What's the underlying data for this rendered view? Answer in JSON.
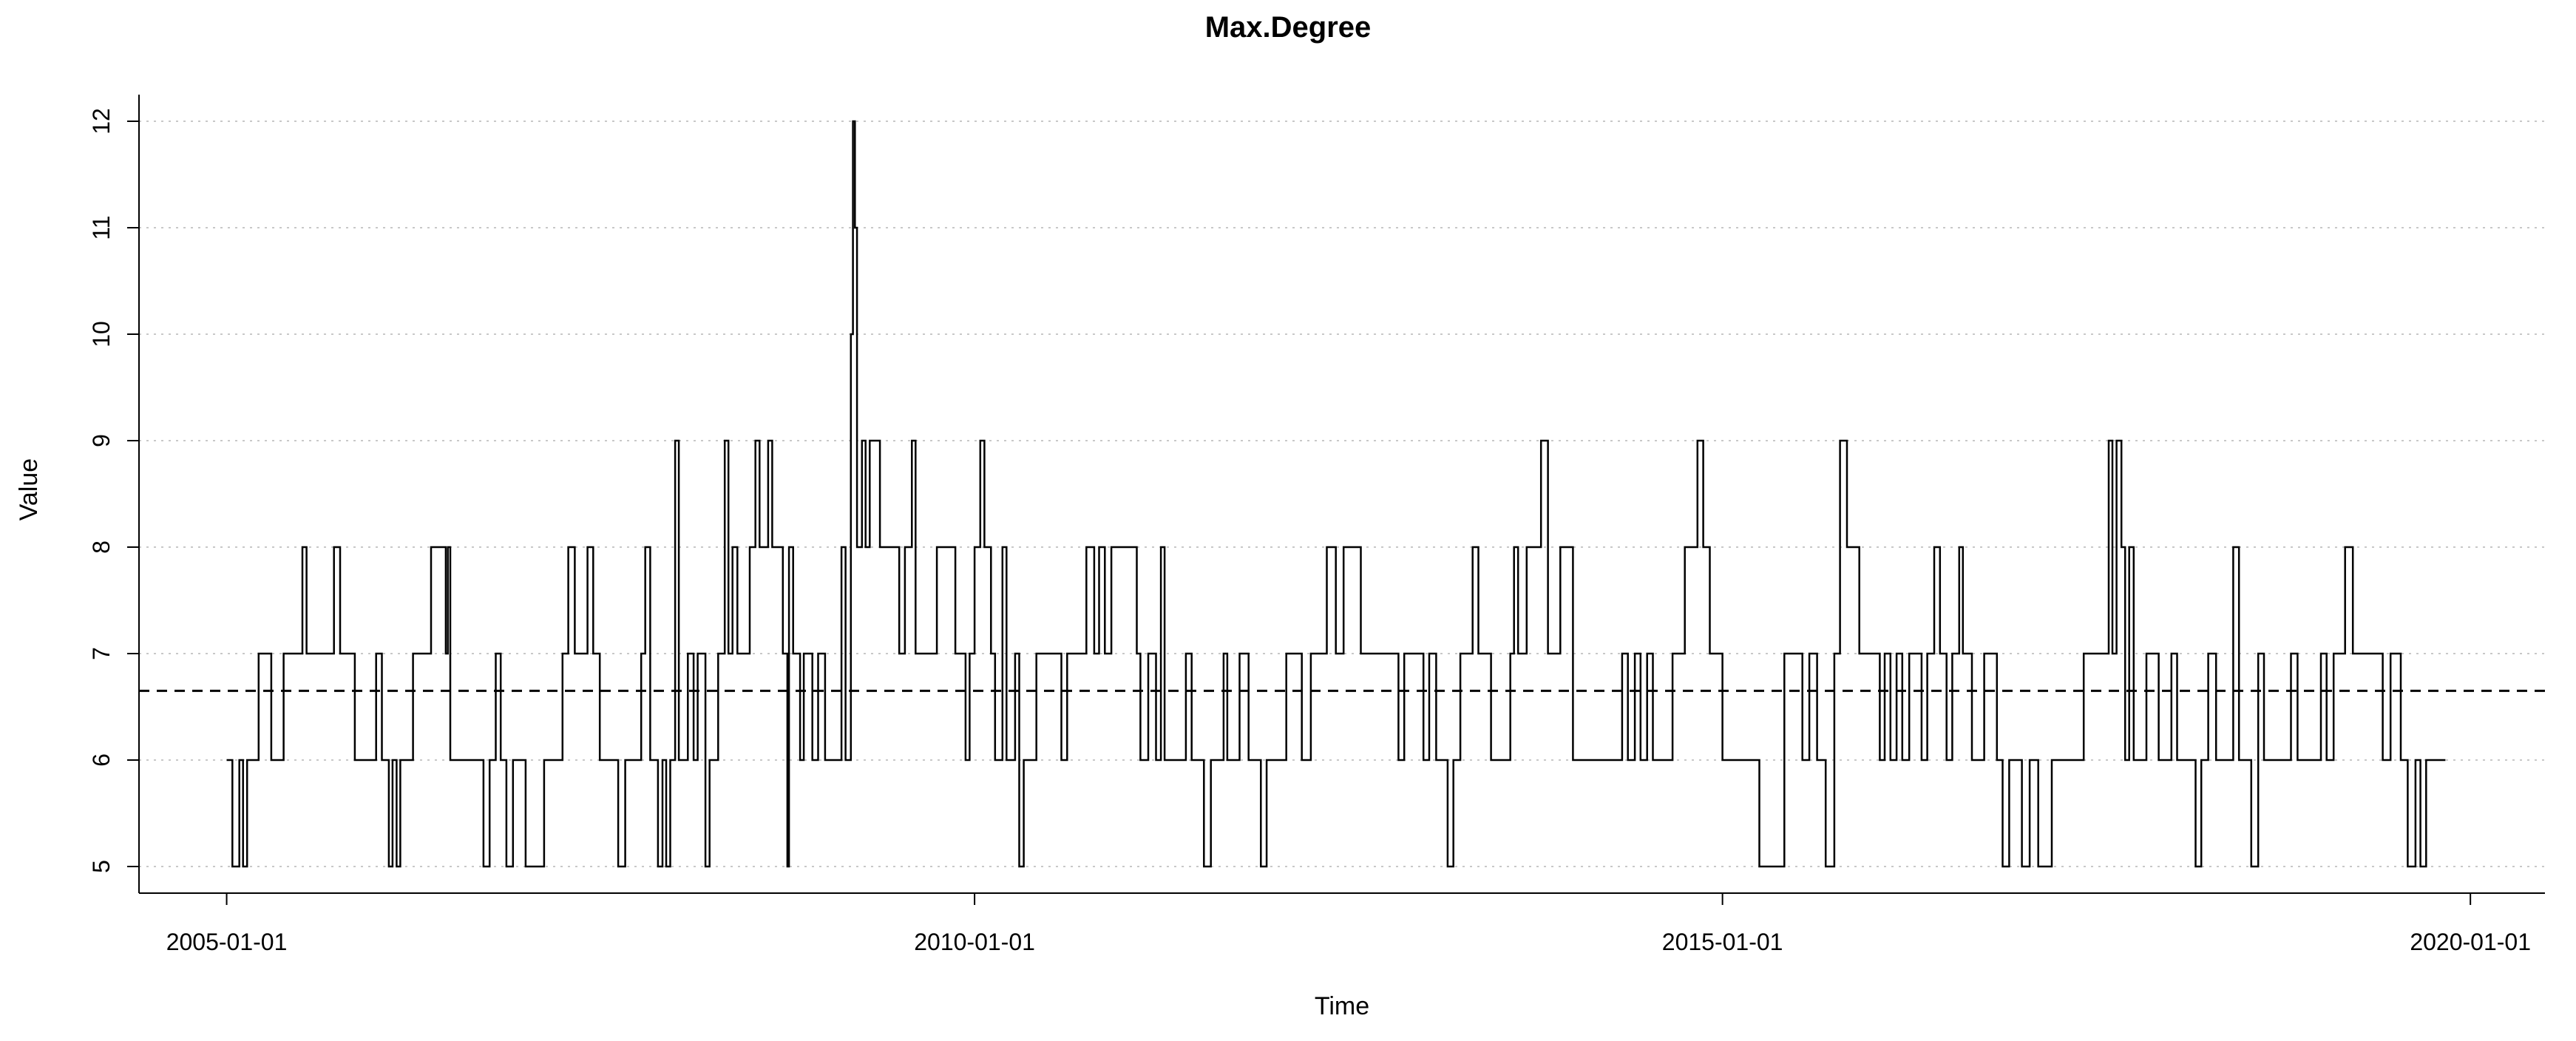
{
  "chart_data": {
    "type": "line",
    "title": "Max.Degree",
    "xlabel": "Time",
    "ylabel": "Value",
    "ylim": [
      4.75,
      12.25
    ],
    "xlim": [
      "2004-06-01",
      "2020-07-01"
    ],
    "x_ticks": [
      "2005-01-01",
      "2010-01-01",
      "2015-01-01",
      "2020-01-01"
    ],
    "y_ticks": [
      5,
      6,
      7,
      8,
      9,
      10,
      11,
      12
    ],
    "grid": "horizontal dotted",
    "mean_line": 6.65,
    "series": [
      {
        "line_style": "step",
        "points": [
          [
            "2005-01-01",
            6
          ],
          [
            "2005-01-15",
            5
          ],
          [
            "2005-02-01",
            6
          ],
          [
            "2005-02-10",
            5
          ],
          [
            "2005-02-20",
            6
          ],
          [
            "2005-03-10",
            6
          ],
          [
            "2005-03-20",
            7
          ],
          [
            "2005-04-10",
            7
          ],
          [
            "2005-04-20",
            6
          ],
          [
            "2005-05-10",
            6
          ],
          [
            "2005-05-20",
            7
          ],
          [
            "2005-06-20",
            7
          ],
          [
            "2005-07-05",
            8
          ],
          [
            "2005-07-15",
            7
          ],
          [
            "2005-09-10",
            7
          ],
          [
            "2005-09-20",
            8
          ],
          [
            "2005-10-05",
            7
          ],
          [
            "2005-10-25",
            7
          ],
          [
            "2005-11-10",
            6
          ],
          [
            "2005-12-20",
            6
          ],
          [
            "2006-01-01",
            7
          ],
          [
            "2006-01-15",
            6
          ],
          [
            "2006-02-01",
            5
          ],
          [
            "2006-02-10",
            6
          ],
          [
            "2006-02-20",
            5
          ],
          [
            "2006-03-01",
            6
          ],
          [
            "2006-03-20",
            6
          ],
          [
            "2006-04-01",
            7
          ],
          [
            "2006-05-01",
            7
          ],
          [
            "2006-05-15",
            8
          ],
          [
            "2006-06-15",
            8
          ],
          [
            "2006-06-20",
            7
          ],
          [
            "2006-06-25",
            8
          ],
          [
            "2006-07-01",
            6
          ],
          [
            "2006-08-01",
            6
          ],
          [
            "2006-09-10",
            6
          ],
          [
            "2006-09-20",
            5
          ],
          [
            "2006-10-05",
            6
          ],
          [
            "2006-10-20",
            7
          ],
          [
            "2006-11-01",
            6
          ],
          [
            "2006-11-15",
            5
          ],
          [
            "2006-12-01",
            6
          ],
          [
            "2007-01-01",
            5
          ],
          [
            "2007-02-15",
            6
          ],
          [
            "2007-03-10",
            6
          ],
          [
            "2007-04-01",
            7
          ],
          [
            "2007-04-15",
            8
          ],
          [
            "2007-05-01",
            7
          ],
          [
            "2007-06-01",
            8
          ],
          [
            "2007-06-15",
            7
          ],
          [
            "2007-07-01",
            6
          ],
          [
            "2007-08-01",
            6
          ],
          [
            "2007-08-15",
            5
          ],
          [
            "2007-09-01",
            6
          ],
          [
            "2007-10-01",
            6
          ],
          [
            "2007-10-10",
            7
          ],
          [
            "2007-10-20",
            8
          ],
          [
            "2007-11-01",
            6
          ],
          [
            "2007-11-20",
            5
          ],
          [
            "2007-12-01",
            6
          ],
          [
            "2007-12-10",
            5
          ],
          [
            "2007-12-20",
            6
          ],
          [
            "2008-01-01",
            9
          ],
          [
            "2008-01-10",
            6
          ],
          [
            "2008-02-01",
            7
          ],
          [
            "2008-02-15",
            6
          ],
          [
            "2008-02-25",
            7
          ],
          [
            "2008-03-15",
            5
          ],
          [
            "2008-03-25",
            6
          ],
          [
            "2008-04-15",
            7
          ],
          [
            "2008-05-01",
            9
          ],
          [
            "2008-05-10",
            7
          ],
          [
            "2008-05-20",
            8
          ],
          [
            "2008-06-01",
            7
          ],
          [
            "2008-07-01",
            8
          ],
          [
            "2008-07-15",
            9
          ],
          [
            "2008-07-25",
            8
          ],
          [
            "2008-08-15",
            9
          ],
          [
            "2008-08-25",
            8
          ],
          [
            "2008-09-10",
            8
          ],
          [
            "2008-09-20",
            7
          ],
          [
            "2008-10-01",
            5
          ],
          [
            "2008-10-05",
            8
          ],
          [
            "2008-10-15",
            7
          ],
          [
            "2008-11-01",
            6
          ],
          [
            "2008-11-10",
            7
          ],
          [
            "2008-12-01",
            6
          ],
          [
            "2008-12-15",
            7
          ],
          [
            "2009-01-01",
            6
          ],
          [
            "2009-02-01",
            6
          ],
          [
            "2009-02-10",
            8
          ],
          [
            "2009-02-20",
            6
          ],
          [
            "2009-03-05",
            10
          ],
          [
            "2009-03-10",
            12
          ],
          [
            "2009-03-15",
            11
          ],
          [
            "2009-03-20",
            8
          ],
          [
            "2009-04-01",
            9
          ],
          [
            "2009-04-10",
            8
          ],
          [
            "2009-04-20",
            9
          ],
          [
            "2009-05-01",
            9
          ],
          [
            "2009-05-15",
            8
          ],
          [
            "2009-06-15",
            8
          ],
          [
            "2009-07-01",
            7
          ],
          [
            "2009-07-15",
            8
          ],
          [
            "2009-08-01",
            9
          ],
          [
            "2009-08-10",
            7
          ],
          [
            "2009-09-01",
            7
          ],
          [
            "2009-10-01",
            8
          ],
          [
            "2009-11-01",
            8
          ],
          [
            "2009-11-15",
            7
          ],
          [
            "2009-12-10",
            6
          ],
          [
            "2009-12-20",
            7
          ],
          [
            "2010-01-01",
            8
          ],
          [
            "2010-01-15",
            9
          ],
          [
            "2010-01-25",
            8
          ],
          [
            "2010-02-10",
            7
          ],
          [
            "2010-02-20",
            6
          ],
          [
            "2010-03-10",
            8
          ],
          [
            "2010-03-20",
            6
          ],
          [
            "2010-04-10",
            7
          ],
          [
            "2010-04-20",
            5
          ],
          [
            "2010-05-01",
            6
          ],
          [
            "2010-06-01",
            7
          ],
          [
            "2010-07-01",
            7
          ],
          [
            "2010-08-01",
            6
          ],
          [
            "2010-08-15",
            7
          ],
          [
            "2010-09-01",
            7
          ],
          [
            "2010-10-01",
            8
          ],
          [
            "2010-10-20",
            7
          ],
          [
            "2010-11-01",
            8
          ],
          [
            "2010-11-15",
            7
          ],
          [
            "2010-12-01",
            8
          ],
          [
            "2011-01-01",
            8
          ],
          [
            "2011-02-01",
            7
          ],
          [
            "2011-02-10",
            6
          ],
          [
            "2011-03-01",
            7
          ],
          [
            "2011-03-20",
            6
          ],
          [
            "2011-04-01",
            8
          ],
          [
            "2011-04-10",
            6
          ],
          [
            "2011-05-15",
            6
          ],
          [
            "2011-06-01",
            7
          ],
          [
            "2011-06-15",
            6
          ],
          [
            "2011-07-15",
            5
          ],
          [
            "2011-08-01",
            6
          ],
          [
            "2011-09-01",
            7
          ],
          [
            "2011-09-10",
            6
          ],
          [
            "2011-10-01",
            6
          ],
          [
            "2011-10-10",
            7
          ],
          [
            "2011-11-01",
            6
          ],
          [
            "2011-12-01",
            5
          ],
          [
            "2011-12-15",
            6
          ],
          [
            "2012-01-15",
            6
          ],
          [
            "2012-02-01",
            7
          ],
          [
            "2012-03-01",
            7
          ],
          [
            "2012-03-10",
            6
          ],
          [
            "2012-04-01",
            7
          ],
          [
            "2012-05-01",
            7
          ],
          [
            "2012-05-10",
            8
          ],
          [
            "2012-06-01",
            7
          ],
          [
            "2012-06-20",
            8
          ],
          [
            "2012-07-15",
            8
          ],
          [
            "2012-08-01",
            7
          ],
          [
            "2012-09-01",
            7
          ],
          [
            "2012-10-01",
            7
          ],
          [
            "2012-11-01",
            6
          ],
          [
            "2012-11-15",
            7
          ],
          [
            "2012-12-01",
            7
          ],
          [
            "2013-01-01",
            6
          ],
          [
            "2013-01-15",
            7
          ],
          [
            "2013-02-01",
            6
          ],
          [
            "2013-02-20",
            6
          ],
          [
            "2013-03-01",
            5
          ],
          [
            "2013-03-15",
            6
          ],
          [
            "2013-04-01",
            7
          ],
          [
            "2013-05-01",
            8
          ],
          [
            "2013-05-15",
            7
          ],
          [
            "2013-06-15",
            6
          ],
          [
            "2013-07-15",
            6
          ],
          [
            "2013-08-01",
            7
          ],
          [
            "2013-08-10",
            8
          ],
          [
            "2013-08-20",
            7
          ],
          [
            "2013-09-01",
            7
          ],
          [
            "2013-09-10",
            8
          ],
          [
            "2013-10-01",
            8
          ],
          [
            "2013-10-15",
            9
          ],
          [
            "2013-11-01",
            7
          ],
          [
            "2013-12-01",
            8
          ],
          [
            "2014-01-01",
            6
          ],
          [
            "2014-02-01",
            6
          ],
          [
            "2014-03-01",
            6
          ],
          [
            "2014-04-01",
            6
          ],
          [
            "2014-05-01",
            7
          ],
          [
            "2014-05-15",
            6
          ],
          [
            "2014-06-01",
            7
          ],
          [
            "2014-06-15",
            6
          ],
          [
            "2014-07-01",
            7
          ],
          [
            "2014-07-15",
            6
          ],
          [
            "2014-08-15",
            6
          ],
          [
            "2014-09-01",
            7
          ],
          [
            "2014-10-01",
            8
          ],
          [
            "2014-11-01",
            9
          ],
          [
            "2014-11-15",
            8
          ],
          [
            "2014-12-01",
            7
          ],
          [
            "2015-01-01",
            6
          ],
          [
            "2015-03-01",
            6
          ],
          [
            "2015-04-01",
            5
          ],
          [
            "2015-05-01",
            5
          ],
          [
            "2015-06-01",
            7
          ],
          [
            "2015-07-01",
            7
          ],
          [
            "2015-07-15",
            6
          ],
          [
            "2015-08-01",
            7
          ],
          [
            "2015-08-20",
            6
          ],
          [
            "2015-09-10",
            5
          ],
          [
            "2015-10-01",
            7
          ],
          [
            "2015-10-15",
            9
          ],
          [
            "2015-11-01",
            8
          ],
          [
            "2015-12-01",
            7
          ],
          [
            "2016-01-01",
            7
          ],
          [
            "2016-01-20",
            6
          ],
          [
            "2016-02-01",
            7
          ],
          [
            "2016-02-15",
            6
          ],
          [
            "2016-03-01",
            7
          ],
          [
            "2016-03-15",
            6
          ],
          [
            "2016-04-01",
            7
          ],
          [
            "2016-05-01",
            6
          ],
          [
            "2016-05-15",
            7
          ],
          [
            "2016-06-01",
            8
          ],
          [
            "2016-06-15",
            7
          ],
          [
            "2016-07-01",
            6
          ],
          [
            "2016-07-15",
            7
          ],
          [
            "2016-08-01",
            8
          ],
          [
            "2016-08-10",
            7
          ],
          [
            "2016-09-01",
            6
          ],
          [
            "2016-10-01",
            7
          ],
          [
            "2016-11-01",
            6
          ],
          [
            "2016-11-15",
            5
          ],
          [
            "2016-12-01",
            6
          ],
          [
            "2017-01-01",
            5
          ],
          [
            "2017-01-20",
            6
          ],
          [
            "2017-02-10",
            5
          ],
          [
            "2017-03-01",
            5
          ],
          [
            "2017-03-15",
            6
          ],
          [
            "2017-04-01",
            6
          ],
          [
            "2017-05-01",
            6
          ],
          [
            "2017-06-01",
            7
          ],
          [
            "2017-07-01",
            7
          ],
          [
            "2017-08-01",
            9
          ],
          [
            "2017-08-10",
            7
          ],
          [
            "2017-08-20",
            9
          ],
          [
            "2017-09-01",
            8
          ],
          [
            "2017-09-10",
            6
          ],
          [
            "2017-09-20",
            8
          ],
          [
            "2017-10-01",
            6
          ],
          [
            "2017-11-01",
            7
          ],
          [
            "2017-12-01",
            6
          ],
          [
            "2018-01-01",
            7
          ],
          [
            "2018-01-15",
            6
          ],
          [
            "2018-02-01",
            6
          ],
          [
            "2018-03-01",
            5
          ],
          [
            "2018-03-15",
            6
          ],
          [
            "2018-04-01",
            7
          ],
          [
            "2018-04-20",
            6
          ],
          [
            "2018-05-01",
            6
          ],
          [
            "2018-06-01",
            8
          ],
          [
            "2018-06-15",
            6
          ],
          [
            "2018-07-15",
            5
          ],
          [
            "2018-08-01",
            7
          ],
          [
            "2018-08-15",
            6
          ],
          [
            "2018-09-01",
            6
          ],
          [
            "2018-10-01",
            6
          ],
          [
            "2018-10-20",
            7
          ],
          [
            "2018-11-05",
            6
          ],
          [
            "2018-12-01",
            6
          ],
          [
            "2019-01-01",
            7
          ],
          [
            "2019-01-15",
            6
          ],
          [
            "2019-02-01",
            7
          ],
          [
            "2019-03-01",
            8
          ],
          [
            "2019-03-20",
            7
          ],
          [
            "2019-04-15",
            7
          ],
          [
            "2019-05-01",
            7
          ],
          [
            "2019-06-01",
            6
          ],
          [
            "2019-06-20",
            7
          ],
          [
            "2019-07-15",
            6
          ],
          [
            "2019-08-01",
            5
          ],
          [
            "2019-08-20",
            6
          ],
          [
            "2019-09-01",
            5
          ],
          [
            "2019-09-15",
            6
          ],
          [
            "2019-10-01",
            6
          ],
          [
            "2019-11-01",
            6
          ]
        ]
      }
    ]
  }
}
